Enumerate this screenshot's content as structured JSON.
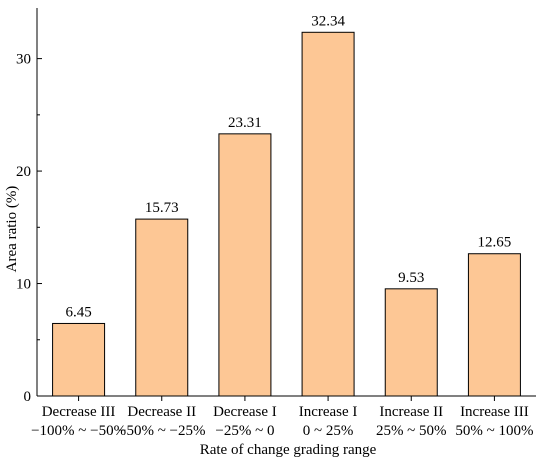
{
  "chart_data": {
    "type": "bar",
    "categories": [
      [
        "Decrease III",
        "−100% ~ −50%"
      ],
      [
        "Decrease II",
        "−50% ~ −25%"
      ],
      [
        "Decrease I",
        "−25% ~ 0"
      ],
      [
        "Increase I",
        "0 ~ 25%"
      ],
      [
        "Increase II",
        "25% ~ 50%"
      ],
      [
        "Increase III",
        "50% ~ 100%"
      ]
    ],
    "values": [
      6.45,
      15.73,
      23.31,
      32.34,
      9.53,
      12.65
    ],
    "data_labels": [
      "6.45",
      "15.73",
      "23.31",
      "32.34",
      "9.53",
      "12.65"
    ],
    "xlabel": "Rate of change grading range",
    "ylabel": "Area ratio (%)",
    "ylim": [
      0,
      34.5
    ],
    "yticks": [
      0,
      10,
      20,
      30
    ],
    "grid": false,
    "legend": "none",
    "colors": {
      "bar_fill": "#FDC795",
      "bar_stroke": "#000000",
      "axis": "#000000"
    }
  }
}
